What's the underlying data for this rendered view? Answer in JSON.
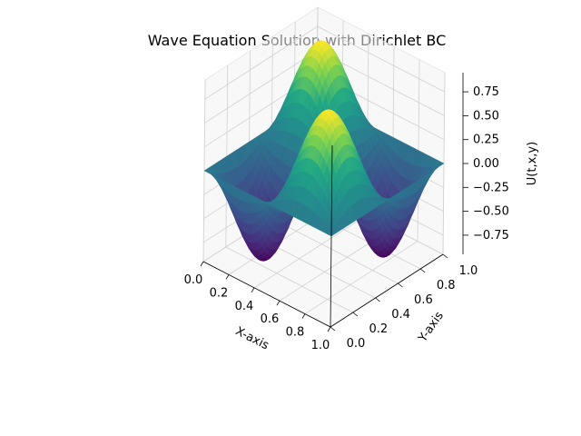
{
  "chart_data": {
    "type": "surface",
    "title": "Wave Equation Solution with  Dirichlet BC",
    "xlabel": "X-axis",
    "ylabel": "Y-axis",
    "zlabel": "U(t,x,y)",
    "xlim": [
      0,
      1
    ],
    "ylim": [
      0,
      1
    ],
    "zlim": [
      -0.95,
      0.95
    ],
    "x_ticks": [
      "0.0",
      "0.2",
      "0.4",
      "0.6",
      "0.8",
      "1.0"
    ],
    "y_ticks": [
      "0.0",
      "0.2",
      "0.4",
      "0.6",
      "0.8",
      "1.0"
    ],
    "z_ticks": [
      "−0.75",
      "−0.50",
      "−0.25",
      "0.00",
      "0.25",
      "0.50",
      "0.75"
    ],
    "x_tick_values": [
      0,
      0.2,
      0.4,
      0.6,
      0.8,
      1.0
    ],
    "y_tick_values": [
      0,
      0.2,
      0.4,
      0.6,
      0.8,
      1.0
    ],
    "z_tick_values": [
      -0.75,
      -0.5,
      -0.25,
      0,
      0.25,
      0.5,
      0.75
    ],
    "surface_function": "U(x,y) = -sin(2*pi*x) * sin(2*pi*y), amplitude about 0.95",
    "amplitude": 0.95,
    "grid": true,
    "colormap": "viridis"
  }
}
